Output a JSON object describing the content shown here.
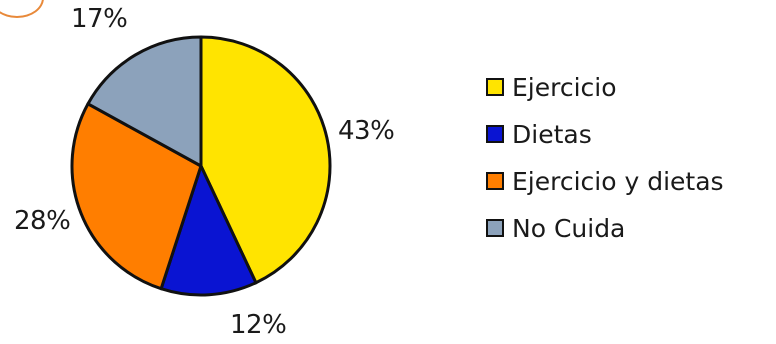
{
  "chart_data": {
    "type": "pie",
    "title": "",
    "slices": [
      {
        "label": "Ejercicio",
        "value": 43,
        "display": "43%",
        "color": "#ffe400"
      },
      {
        "label": "Dietas",
        "value": 12,
        "display": "12%",
        "color": "#0a14d2"
      },
      {
        "label": "Ejercicio y dietas",
        "value": 28,
        "display": "28%",
        "color": "#ff7e00"
      },
      {
        "label": "No Cuida",
        "value": 17,
        "display": "17%",
        "color": "#8ca2bb"
      }
    ],
    "start_angle_deg": 0,
    "direction": "clockwise",
    "legend_position": "right"
  },
  "badge_color": "#e8893a"
}
